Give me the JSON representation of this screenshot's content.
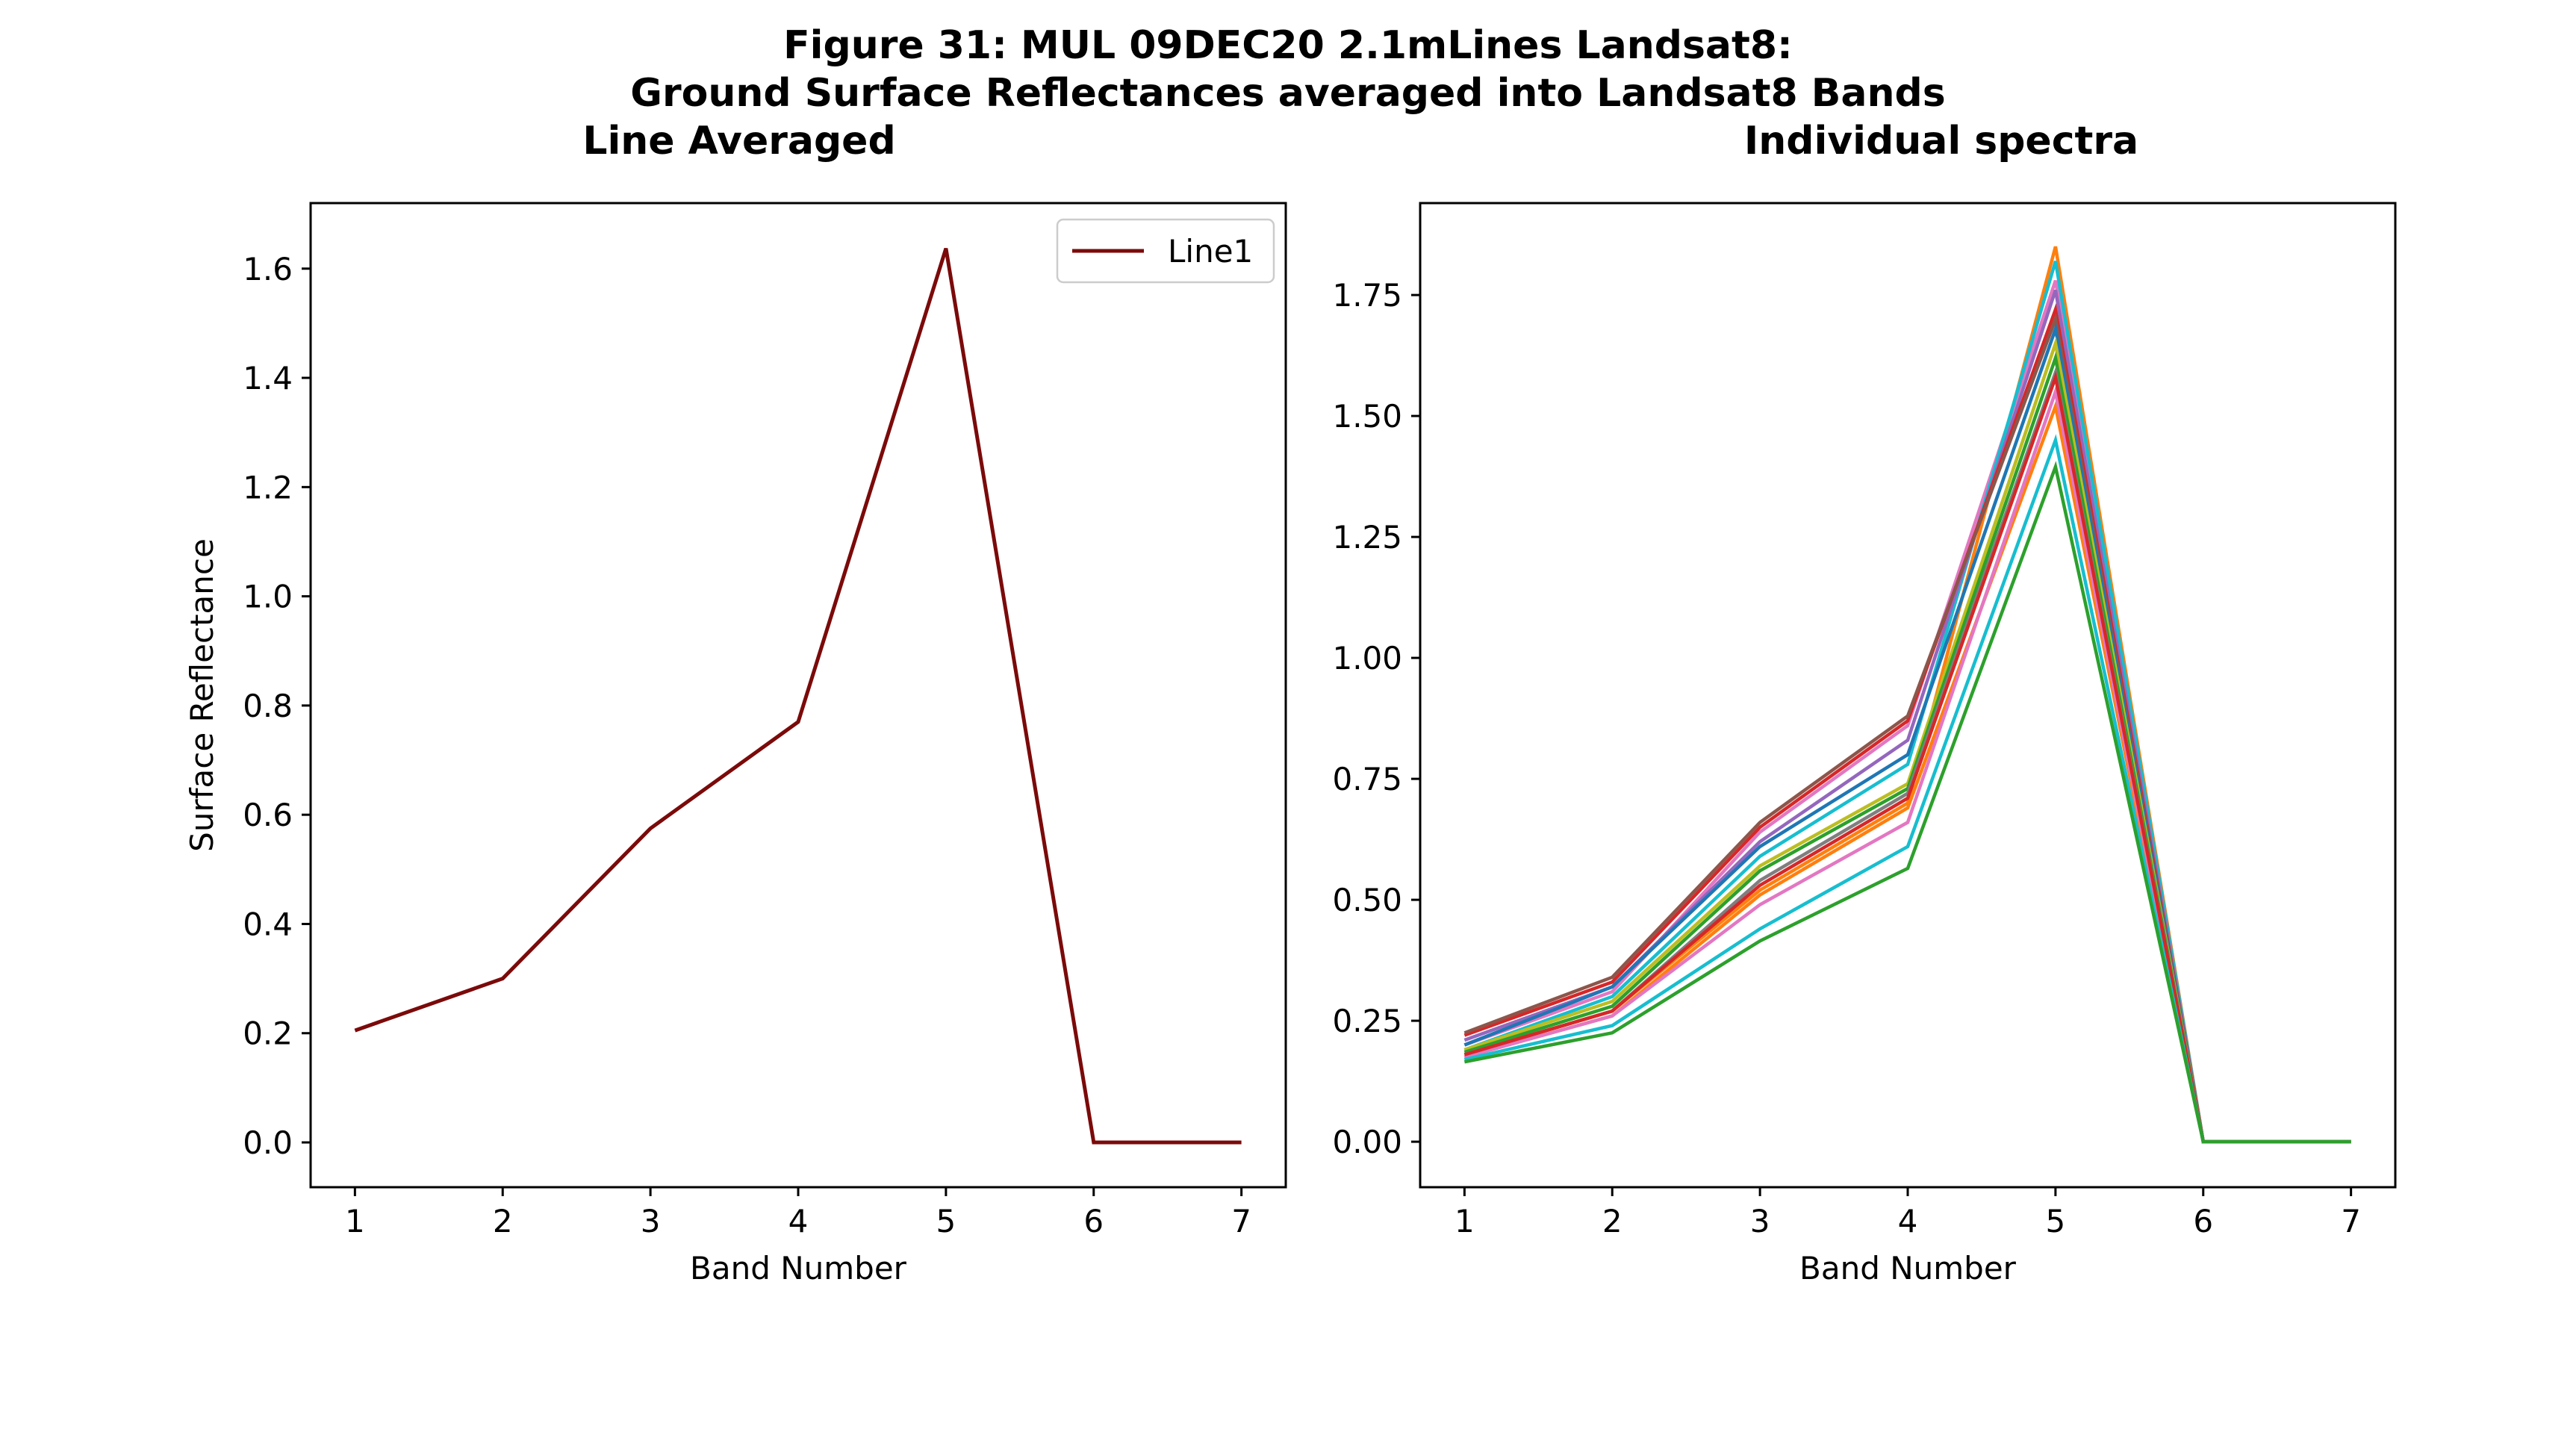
{
  "figure": {
    "title_line1": "Figure 31: MUL 09DEC20 2.1mLines Landsat8:",
    "title_line2": "Ground Surface Reflectances averaged into Landsat8 Bands"
  },
  "chart_data": [
    {
      "type": "line",
      "title": "Line Averaged",
      "xlabel": "Band Number",
      "ylabel": "Surface Reflectance",
      "x": [
        1,
        2,
        3,
        4,
        5,
        6,
        7
      ],
      "xticks": [
        "1",
        "2",
        "3",
        "4",
        "5",
        "6",
        "7"
      ],
      "yticks": [
        "0.0",
        "0.2",
        "0.4",
        "0.6",
        "0.8",
        "1.0",
        "1.2",
        "1.4",
        "1.6"
      ],
      "xlim": [
        0.7,
        7.3
      ],
      "ylim": [
        -0.082,
        1.72
      ],
      "legend": "upper right",
      "series": [
        {
          "name": "Line1",
          "color": "#7b0a0a",
          "values": [
            0.205,
            0.3,
            0.575,
            0.77,
            1.637,
            0.0,
            0.0
          ]
        }
      ]
    },
    {
      "type": "line",
      "title": "Individual spectra",
      "xlabel": "Band Number",
      "ylabel": "",
      "x": [
        1,
        2,
        3,
        4,
        5,
        6,
        7
      ],
      "xticks": [
        "1",
        "2",
        "3",
        "4",
        "5",
        "6",
        "7"
      ],
      "yticks": [
        "0.00",
        "0.25",
        "0.50",
        "0.75",
        "1.00",
        "1.25",
        "1.50",
        "1.75"
      ],
      "xlim": [
        0.7,
        7.3
      ],
      "ylim": [
        -0.094,
        1.94
      ],
      "legend": "none",
      "series": [
        {
          "color": "#ff7f0e",
          "values": [
            0.18,
            0.27,
            0.52,
            0.7,
            1.85,
            0.0,
            0.0
          ]
        },
        {
          "color": "#e377c2",
          "values": [
            0.2,
            0.31,
            0.64,
            0.86,
            1.78,
            0.0,
            0.0
          ]
        },
        {
          "color": "#17becf",
          "values": [
            0.19,
            0.3,
            0.59,
            0.78,
            1.82,
            0.0,
            0.0
          ]
        },
        {
          "color": "#9467bd",
          "values": [
            0.21,
            0.32,
            0.62,
            0.83,
            1.76,
            0.0,
            0.0
          ]
        },
        {
          "color": "#d62728",
          "values": [
            0.22,
            0.33,
            0.65,
            0.87,
            1.72,
            0.0,
            0.0
          ]
        },
        {
          "color": "#8c564b",
          "values": [
            0.225,
            0.34,
            0.66,
            0.88,
            1.7,
            0.0,
            0.0
          ]
        },
        {
          "color": "#1f77b4",
          "values": [
            0.2,
            0.32,
            0.61,
            0.8,
            1.68,
            0.0,
            0.0
          ]
        },
        {
          "color": "#bcbd22",
          "values": [
            0.19,
            0.29,
            0.57,
            0.74,
            1.65,
            0.0,
            0.0
          ]
        },
        {
          "color": "#2ca02c",
          "values": [
            0.185,
            0.28,
            0.56,
            0.73,
            1.62,
            0.0,
            0.0
          ]
        },
        {
          "color": "#7f7f7f",
          "values": [
            0.18,
            0.27,
            0.54,
            0.72,
            1.59,
            0.0,
            0.0
          ]
        },
        {
          "color": "#ff7f0e",
          "values": [
            0.175,
            0.26,
            0.51,
            0.69,
            1.52,
            0.0,
            0.0
          ]
        },
        {
          "color": "#e377c2",
          "values": [
            0.175,
            0.26,
            0.49,
            0.66,
            1.55,
            0.0,
            0.0
          ]
        },
        {
          "color": "#d62728",
          "values": [
            0.18,
            0.27,
            0.53,
            0.71,
            1.58,
            0.0,
            0.0
          ]
        },
        {
          "color": "#17becf",
          "values": [
            0.17,
            0.24,
            0.44,
            0.61,
            1.45,
            0.0,
            0.0
          ]
        },
        {
          "color": "#2ca02c",
          "values": [
            0.165,
            0.225,
            0.415,
            0.565,
            1.395,
            0.0,
            0.0
          ]
        }
      ]
    }
  ]
}
